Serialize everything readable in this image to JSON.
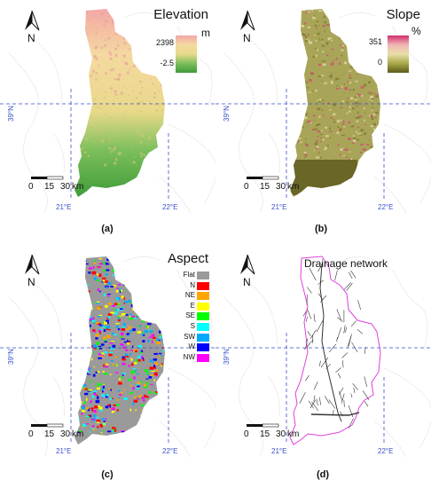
{
  "panels": [
    {
      "id": "a",
      "title": "Elevation",
      "unit": "m",
      "max_label": "2398",
      "min_label": "-2.5",
      "caption": "(a)",
      "ramp": [
        "#f2a6a6",
        "#f5d9a0",
        "#e8d98a",
        "#7cbf5b",
        "#3f9b3a"
      ]
    },
    {
      "id": "b",
      "title": "Slope",
      "unit": "%",
      "max_label": "351",
      "min_label": "0",
      "caption": "(b)",
      "ramp": [
        "#d1306e",
        "#f0b5b5",
        "#e8e0a8",
        "#a8a84a",
        "#5c5a1a"
      ]
    },
    {
      "id": "c",
      "title": "Aspect",
      "caption": "(c)",
      "legend": [
        {
          "label": "Flat",
          "color": "#9a9a9a"
        },
        {
          "label": "N",
          "color": "#ff0000"
        },
        {
          "label": "NE",
          "color": "#ffa500"
        },
        {
          "label": "E",
          "color": "#ffff00"
        },
        {
          "label": "SE",
          "color": "#00ff00"
        },
        {
          "label": "S",
          "color": "#00ffff"
        },
        {
          "label": "SW",
          "color": "#00aaff"
        },
        {
          "label": "W",
          "color": "#0000ff"
        },
        {
          "label": "NW",
          "color": "#ff00ff"
        }
      ]
    },
    {
      "id": "d",
      "title": "Drainage network",
      "caption": "(d)"
    }
  ],
  "north_label": "N",
  "scalebar": {
    "v0": "0",
    "v1": "15",
    "v2": "30",
    "unit": "km"
  },
  "lat_label": "39°N",
  "lon_labels": [
    "21°E",
    "22°E"
  ],
  "colors": {
    "graticule": "#3a4fc9",
    "outline": "#c8c8c8",
    "basin_border_d": "#e040e0",
    "drainage": "#333333"
  }
}
